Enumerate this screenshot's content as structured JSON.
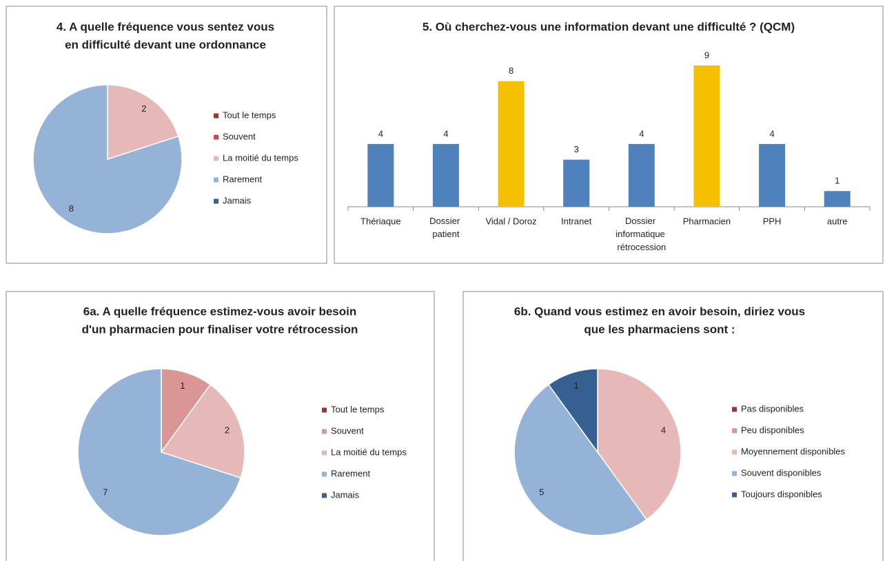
{
  "chart_data": [
    {
      "type": "pie",
      "title": [
        "4. A quelle fréquence vous sentez vous",
        "en difficulté devant une ordonnance"
      ],
      "categories": [
        "Tout le temps",
        "Souvent",
        "La moitié du temps",
        "Rarement",
        "Jamais"
      ],
      "values": [
        0,
        0,
        2,
        8,
        0
      ],
      "colors": [
        "#953735",
        "#c0504d",
        "#e6b9b8",
        "#95b3d7",
        "#376092"
      ],
      "legend": "right"
    },
    {
      "type": "bar",
      "title": [
        "5. Où cherchez-vous une information devant une difficulté ? (QCM)"
      ],
      "categories": [
        "Thériaque",
        "Dossier patient",
        "Vidal / Doroz",
        "Intranet",
        "Dossier informatique rétrocession",
        "Pharmacien",
        "PPH",
        "autre"
      ],
      "values": [
        4,
        4,
        8,
        3,
        4,
        9,
        4,
        1
      ],
      "colors": [
        "#4f81bd",
        "#4f81bd",
        "#f5c000",
        "#4f81bd",
        "#4f81bd",
        "#f5c000",
        "#4f81bd",
        "#4f81bd"
      ]
    },
    {
      "type": "pie",
      "title": [
        "6a. A quelle fréquence estimez-vous avoir besoin",
        "d'un pharmacien pour finaliser votre rétrocession"
      ],
      "categories": [
        "Tout le temps",
        "Souvent",
        "La moitié du temps",
        "Rarement",
        "Jamais"
      ],
      "values": [
        0,
        1,
        2,
        7,
        0
      ],
      "colors": [
        "#953735",
        "#d99694",
        "#e6b9b8",
        "#95b3d7",
        "#376092"
      ],
      "legend": "right"
    },
    {
      "type": "pie",
      "title": [
        "6b. Quand vous estimez en avoir besoin, diriez vous",
        "que les pharmaciens sont :"
      ],
      "categories": [
        "Pas disponibles",
        "Peu disponibles",
        "Moyennement disponibles",
        "Souvent disponibles",
        "Toujours disponibles"
      ],
      "values": [
        0,
        0,
        4,
        5,
        1
      ],
      "colors": [
        "#953735",
        "#d99694",
        "#e6b9b8",
        "#95b3d7",
        "#376092"
      ],
      "legend": "right"
    }
  ]
}
